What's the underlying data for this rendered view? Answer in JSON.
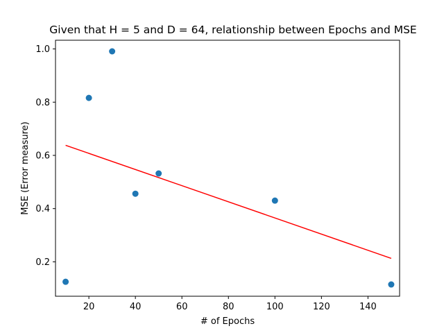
{
  "chart_data": {
    "type": "scatter",
    "title": "Given that H = 5 and D = 64, relationship between Epochs and MSE",
    "xlabel": "# of Epochs",
    "ylabel": "MSE (Error measure)",
    "xlim": [
      5.65,
      153.6
    ],
    "ylim": [
      0.0707,
      1.0327
    ],
    "xticks": [
      20,
      40,
      60,
      80,
      100,
      120,
      140
    ],
    "yticks": [
      0.2,
      0.4,
      0.6,
      0.8,
      1.0
    ],
    "xtick_labels": [
      "20",
      "40",
      "60",
      "80",
      "100",
      "120",
      "140"
    ],
    "ytick_labels": [
      "0.2",
      "0.4",
      "0.6",
      "0.8",
      "1.0"
    ],
    "grid": false,
    "legend": "none",
    "series": [
      {
        "type": "scatter",
        "color": "#1f77b4",
        "points": [
          {
            "x": 10,
            "y": 0.125
          },
          {
            "x": 20,
            "y": 0.816
          },
          {
            "x": 30,
            "y": 0.991
          },
          {
            "x": 40,
            "y": 0.456
          },
          {
            "x": 50,
            "y": 0.532
          },
          {
            "x": 100,
            "y": 0.43
          },
          {
            "x": 150,
            "y": 0.115
          }
        ]
      },
      {
        "type": "line",
        "color": "#ff0000",
        "points": [
          {
            "x": 10,
            "y": 0.638
          },
          {
            "x": 150,
            "y": 0.213
          }
        ]
      }
    ]
  }
}
